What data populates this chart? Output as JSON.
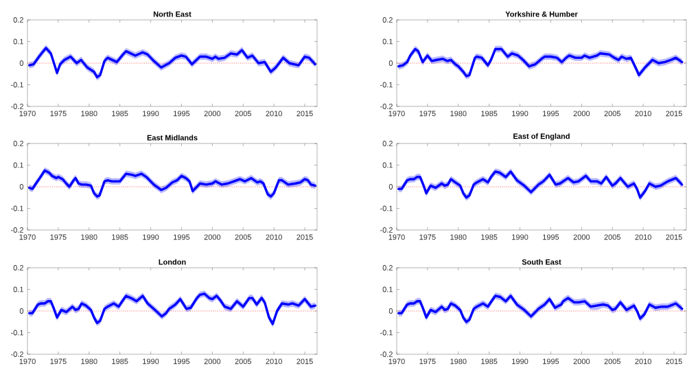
{
  "chart_data": [
    {
      "type": "line",
      "title": "North East",
      "xlim": [
        1970,
        2017
      ],
      "ylim": [
        -0.2,
        0.2
      ],
      "xticks": [
        1970,
        1975,
        1980,
        1985,
        1990,
        1995,
        2000,
        2005,
        2010,
        2015
      ],
      "yticks": [
        -0.2,
        -0.1,
        0,
        0.1,
        0.2
      ],
      "ref_lines": [
        {
          "axis": "y",
          "value": 0,
          "color": "#ff0000",
          "line_style": "dotted"
        }
      ],
      "x": [
        1970.3,
        1971,
        1972,
        1973,
        1973.8,
        1974.8,
        1975.3,
        1976,
        1977,
        1978,
        1978.7,
        1979.7,
        1980.8,
        1981.3,
        1981.8,
        1982.5,
        1983,
        1984.5,
        1985.5,
        1986,
        1987.5,
        1988.7,
        1989.5,
        1990.5,
        1991.7,
        1993,
        1994,
        1995,
        1995.7,
        1996.7,
        1998,
        1999,
        2000,
        2000.5,
        2001,
        2002,
        2003,
        2004,
        2004.8,
        2005.7,
        2006.5,
        2007.5,
        2008.5,
        2009.5,
        2010.3,
        2011.5,
        2012.5,
        2014,
        2015,
        2015.7,
        2016.7
      ],
      "series": [
        {
          "color": "#0000ff",
          "values": [
            -0.01,
            -0.005,
            0.035,
            0.07,
            0.045,
            -0.045,
            -0.005,
            0.015,
            0.03,
            0.0,
            0.015,
            -0.02,
            -0.04,
            -0.065,
            -0.055,
            0.01,
            0.025,
            0.005,
            0.04,
            0.055,
            0.035,
            0.05,
            0.04,
            0.01,
            -0.02,
            0.0,
            0.025,
            0.035,
            0.03,
            -0.005,
            0.03,
            0.03,
            0.02,
            0.03,
            0.02,
            0.025,
            0.045,
            0.04,
            0.06,
            0.025,
            0.035,
            0.0,
            0.005,
            -0.04,
            -0.02,
            0.025,
            0.0,
            -0.01,
            0.03,
            0.025,
            -0.005
          ],
          "lower": [
            -0.025,
            -0.02,
            0.02,
            0.055,
            0.03,
            -0.06,
            -0.02,
            0,
            0.015,
            -0.015,
            0,
            -0.035,
            -0.055,
            -0.08,
            -0.07,
            -0.005,
            0.01,
            -0.01,
            0.025,
            0.04,
            0.02,
            0.035,
            0.025,
            -0.005,
            -0.035,
            -0.015,
            0.01,
            0.02,
            0.015,
            -0.02,
            0.015,
            0.015,
            0.005,
            0.015,
            0.005,
            0.01,
            0.03,
            0.025,
            0.045,
            0.01,
            0.02,
            -0.015,
            -0.01,
            -0.055,
            -0.035,
            0.01,
            -0.015,
            -0.025,
            0.015,
            0.01,
            -0.02
          ],
          "upper": [
            0.005,
            0.01,
            0.05,
            0.085,
            0.06,
            -0.03,
            0.01,
            0.03,
            0.045,
            0.015,
            0.03,
            -0.005,
            -0.025,
            -0.05,
            -0.04,
            0.025,
            0.04,
            0.02,
            0.055,
            0.07,
            0.05,
            0.065,
            0.055,
            0.025,
            -0.005,
            0.015,
            0.04,
            0.05,
            0.045,
            0.01,
            0.045,
            0.045,
            0.035,
            0.045,
            0.035,
            0.04,
            0.06,
            0.055,
            0.075,
            0.04,
            0.05,
            0.015,
            0.02,
            -0.025,
            -0.005,
            0.04,
            0.015,
            0.005,
            0.045,
            0.04,
            0.01
          ]
        }
      ]
    },
    {
      "type": "line",
      "title": "Yorkshire & Humber",
      "xlim": [
        1970,
        2017
      ],
      "ylim": [
        -0.2,
        0.2
      ],
      "xticks": [
        1970,
        1975,
        1980,
        1985,
        1990,
        1995,
        2000,
        2005,
        2010,
        2015
      ],
      "yticks": [
        -0.2,
        -0.1,
        0,
        0.1,
        0.2
      ],
      "ref_lines": [
        {
          "axis": "y",
          "value": 0,
          "color": "#ff0000",
          "line_style": "dotted"
        }
      ],
      "x": [
        1970.3,
        1971,
        1971.7,
        1972.2,
        1973,
        1973.5,
        1974.2,
        1975,
        1975.7,
        1976.5,
        1977.5,
        1978.2,
        1978.8,
        1979.5,
        1980,
        1980.8,
        1981.3,
        1981.8,
        1982.7,
        1983,
        1983.8,
        1984.8,
        1985.3,
        1986,
        1987,
        1988,
        1988.7,
        1989.7,
        1990.5,
        1991.5,
        1992.5,
        1993.5,
        1994,
        1995,
        1996,
        1996.8,
        1997.5,
        1998,
        1999,
        2000,
        2000.5,
        2001.3,
        2002.5,
        2003,
        2004.5,
        2005.3,
        2006,
        2006.5,
        2007.3,
        2008,
        2009,
        2009.3,
        2010.3,
        2011.5,
        2012.5,
        2013.5,
        2014.5,
        2015.3,
        2016.3
      ],
      "series": [
        {
          "color": "#0000ff",
          "values": [
            -0.015,
            -0.01,
            0.005,
            0.035,
            0.065,
            0.055,
            0.005,
            0.035,
            0.01,
            0.015,
            0.02,
            0.01,
            0.015,
            -0.005,
            -0.015,
            -0.04,
            -0.06,
            -0.055,
            0.025,
            0.03,
            0.025,
            -0.01,
            0.015,
            0.065,
            0.065,
            0.03,
            0.045,
            0.035,
            0.015,
            -0.015,
            -0.005,
            0.02,
            0.03,
            0.03,
            0.025,
            0.005,
            0.025,
            0.035,
            0.025,
            0.025,
            0.035,
            0.025,
            0.035,
            0.045,
            0.04,
            0.025,
            0.015,
            0.03,
            0.02,
            0.025,
            -0.035,
            -0.055,
            -0.02,
            0.015,
            0.0,
            0.005,
            0.015,
            0.025,
            0.005
          ],
          "lower": [
            -0.03,
            -0.025,
            -0.01,
            0.02,
            0.05,
            0.04,
            -0.01,
            0.02,
            -0.005,
            0,
            0.005,
            -0.005,
            0,
            -0.02,
            -0.03,
            -0.055,
            -0.075,
            -0.07,
            0.01,
            0.015,
            0.01,
            -0.025,
            0,
            0.05,
            0.05,
            0.015,
            0.03,
            0.02,
            0,
            -0.03,
            -0.02,
            0.005,
            0.015,
            0.015,
            0.01,
            -0.01,
            0.01,
            0.02,
            0.01,
            0.01,
            0.02,
            0.01,
            0.02,
            0.03,
            0.025,
            0.01,
            0,
            0.015,
            0.005,
            0.01,
            -0.05,
            -0.07,
            -0.035,
            0,
            -0.015,
            -0.01,
            0,
            0.01,
            -0.01
          ],
          "upper": [
            0,
            0.005,
            0.02,
            0.05,
            0.08,
            0.07,
            0.02,
            0.05,
            0.025,
            0.03,
            0.035,
            0.025,
            0.03,
            0.01,
            0,
            -0.025,
            -0.045,
            -0.04,
            0.04,
            0.045,
            0.04,
            0.005,
            0.03,
            0.08,
            0.08,
            0.045,
            0.06,
            0.05,
            0.03,
            0,
            0.01,
            0.035,
            0.045,
            0.045,
            0.04,
            0.02,
            0.04,
            0.05,
            0.04,
            0.04,
            0.05,
            0.04,
            0.05,
            0.06,
            0.055,
            0.04,
            0.03,
            0.045,
            0.035,
            0.04,
            -0.02,
            -0.04,
            -0.005,
            0.03,
            0.015,
            0.02,
            0.03,
            0.04,
            0.02
          ]
        }
      ]
    },
    {
      "type": "line",
      "title": "East Midlands",
      "xlim": [
        1970,
        2017
      ],
      "ylim": [
        -0.2,
        0.2
      ],
      "xticks": [
        1970,
        1975,
        1980,
        1985,
        1990,
        1995,
        2000,
        2005,
        2010,
        2015
      ],
      "yticks": [
        -0.2,
        -0.1,
        0,
        0.1,
        0.2
      ],
      "ref_lines": [
        {
          "axis": "y",
          "value": 0,
          "color": "#ff0000",
          "line_style": "dotted"
        }
      ],
      "x": [
        1970.3,
        1970.8,
        1971.5,
        1972,
        1972.8,
        1973.5,
        1974,
        1974.7,
        1975,
        1975.7,
        1976.3,
        1976.8,
        1977.5,
        1977.8,
        1978.3,
        1978.8,
        1979.5,
        1980.3,
        1980.8,
        1981.3,
        1981.7,
        1982.5,
        1983,
        1983.7,
        1984.5,
        1985,
        1986,
        1987,
        1987.5,
        1988.5,
        1989.3,
        1990.5,
        1991.7,
        1992.5,
        1993.5,
        1994.3,
        1995,
        1995.7,
        1996.3,
        1996.8,
        1997.5,
        1998,
        1999,
        2000,
        2000.5,
        2001.5,
        2002.5,
        2003.5,
        2004.5,
        2005.3,
        2006.3,
        2007.3,
        2007.8,
        2008.3,
        2009,
        2009.5,
        2010,
        2010.8,
        2011.3,
        2012.3,
        2013.5,
        2014.3,
        2015,
        2015.5,
        2016,
        2016.7
      ],
      "series": [
        {
          "color": "#0000ff",
          "values": [
            -0.005,
            -0.01,
            0.02,
            0.04,
            0.075,
            0.065,
            0.05,
            0.04,
            0.045,
            0.035,
            0.015,
            0.0,
            0.03,
            0.04,
            0.015,
            0.01,
            0.01,
            0.005,
            -0.03,
            -0.045,
            -0.04,
            0.025,
            0.03,
            0.025,
            0.025,
            0.025,
            0.06,
            0.055,
            0.05,
            0.06,
            0.045,
            0.01,
            -0.015,
            -0.005,
            0.02,
            0.03,
            0.05,
            0.04,
            0.025,
            -0.02,
            0.0,
            0.015,
            0.01,
            0.015,
            0.025,
            0.01,
            0.015,
            0.025,
            0.035,
            0.025,
            0.04,
            0.02,
            0.025,
            0.015,
            -0.035,
            -0.045,
            -0.03,
            0.03,
            0.03,
            0.01,
            0.015,
            0.02,
            0.035,
            0.03,
            0.01,
            0.005
          ],
          "lower": [
            -0.02,
            -0.025,
            0.005,
            0.025,
            0.06,
            0.05,
            0.035,
            0.025,
            0.03,
            0.02,
            0,
            -0.015,
            0.015,
            0.025,
            0,
            -0.005,
            -0.005,
            -0.01,
            -0.045,
            -0.06,
            -0.055,
            0.01,
            0.015,
            0.01,
            0.01,
            0.01,
            0.045,
            0.04,
            0.035,
            0.045,
            0.03,
            -0.005,
            -0.03,
            -0.02,
            0.005,
            0.015,
            0.035,
            0.025,
            0.01,
            -0.035,
            -0.015,
            0,
            -0.005,
            0,
            0.01,
            -0.005,
            0,
            0.01,
            0.02,
            0.01,
            0.025,
            0.005,
            0.01,
            0,
            -0.05,
            -0.06,
            -0.045,
            0.015,
            0.015,
            -0.005,
            0,
            0.005,
            0.02,
            0.015,
            -0.005,
            -0.01
          ],
          "upper": [
            0.01,
            0.005,
            0.035,
            0.055,
            0.09,
            0.08,
            0.065,
            0.055,
            0.06,
            0.05,
            0.03,
            0.015,
            0.045,
            0.055,
            0.03,
            0.025,
            0.025,
            0.02,
            -0.015,
            -0.03,
            -0.025,
            0.04,
            0.045,
            0.04,
            0.04,
            0.04,
            0.075,
            0.07,
            0.065,
            0.075,
            0.06,
            0.025,
            0,
            0.01,
            0.035,
            0.045,
            0.065,
            0.055,
            0.04,
            -0.005,
            0.015,
            0.03,
            0.025,
            0.03,
            0.04,
            0.025,
            0.03,
            0.04,
            0.05,
            0.04,
            0.055,
            0.035,
            0.04,
            0.03,
            -0.02,
            -0.03,
            -0.015,
            0.045,
            0.045,
            0.025,
            0.03,
            0.035,
            0.05,
            0.045,
            0.025,
            0.02
          ]
        }
      ]
    },
    {
      "type": "line",
      "title": "East of England",
      "xlim": [
        1970,
        2017
      ],
      "ylim": [
        -0.2,
        0.2
      ],
      "xticks": [
        1970,
        1975,
        1980,
        1985,
        1990,
        1995,
        2000,
        2005,
        2010,
        2015
      ],
      "yticks": [
        -0.2,
        -0.1,
        0,
        0.1,
        0.2
      ],
      "ref_lines": [
        {
          "axis": "y",
          "value": 0,
          "color": "#ff0000",
          "line_style": "dotted"
        }
      ],
      "x": [
        1970.3,
        1970.8,
        1971.7,
        1972.2,
        1972.8,
        1973.3,
        1973.8,
        1974.3,
        1974.8,
        1975.5,
        1976.3,
        1977.3,
        1977.8,
        1978.3,
        1978.8,
        1979.5,
        1980.3,
        1980.8,
        1981.3,
        1981.8,
        1982.5,
        1983,
        1984,
        1984.8,
        1985.3,
        1986,
        1986.7,
        1987.7,
        1988.5,
        1989.5,
        1990.7,
        1991.8,
        1992.5,
        1993,
        1993.8,
        1994.8,
        1995.8,
        1996.5,
        1997.8,
        1998.7,
        1999.5,
        2000.7,
        2001.5,
        2002.5,
        2003.2,
        2004,
        2005,
        2005.5,
        2006.3,
        2007.5,
        2008.5,
        2009,
        2009.5,
        2010.3,
        2011,
        2012,
        2012.8,
        2014,
        2015.3,
        2016.3
      ],
      "series": [
        {
          "color": "#0000ff",
          "values": [
            -0.01,
            -0.01,
            0.03,
            0.035,
            0.035,
            0.045,
            0.045,
            0.01,
            -0.03,
            0.005,
            -0.005,
            0.015,
            0.005,
            0.01,
            0.035,
            0.02,
            0.005,
            -0.03,
            -0.05,
            -0.04,
            0.01,
            0.02,
            0.035,
            0.02,
            0.045,
            0.07,
            0.065,
            0.045,
            0.07,
            0.03,
            0.005,
            -0.025,
            -0.005,
            0.01,
            0.025,
            0.055,
            0.01,
            0.015,
            0.04,
            0.02,
            0.025,
            0.05,
            0.025,
            0.025,
            0.015,
            0.045,
            0.005,
            0.015,
            0.04,
            0.0,
            0.015,
            -0.01,
            -0.05,
            -0.02,
            0.015,
            0.0,
            0.005,
            0.025,
            0.04,
            0.01
          ],
          "lower": [
            -0.025,
            -0.025,
            0.015,
            0.02,
            0.02,
            0.03,
            0.03,
            -0.005,
            -0.045,
            -0.01,
            -0.02,
            0,
            -0.01,
            -0.005,
            0.02,
            0.005,
            -0.01,
            -0.045,
            -0.065,
            -0.055,
            -0.005,
            0.005,
            0.02,
            0.005,
            0.03,
            0.055,
            0.05,
            0.03,
            0.055,
            0.015,
            -0.01,
            -0.04,
            -0.02,
            -0.005,
            0.01,
            0.04,
            -0.005,
            0,
            0.025,
            0.005,
            0.01,
            0.035,
            0.01,
            0.01,
            0,
            0.03,
            -0.01,
            0,
            0.025,
            -0.015,
            0,
            -0.025,
            -0.065,
            -0.035,
            0,
            -0.015,
            -0.01,
            0.01,
            0.025,
            -0.005
          ],
          "upper": [
            0.005,
            0.005,
            0.045,
            0.05,
            0.05,
            0.06,
            0.06,
            0.025,
            -0.015,
            0.02,
            0.01,
            0.03,
            0.02,
            0.025,
            0.05,
            0.035,
            0.02,
            -0.015,
            -0.035,
            -0.025,
            0.025,
            0.035,
            0.05,
            0.035,
            0.06,
            0.085,
            0.08,
            0.06,
            0.085,
            0.045,
            0.02,
            -0.01,
            0.01,
            0.025,
            0.04,
            0.07,
            0.025,
            0.03,
            0.055,
            0.035,
            0.04,
            0.065,
            0.04,
            0.04,
            0.03,
            0.06,
            0.02,
            0.03,
            0.055,
            0.015,
            0.03,
            0.005,
            -0.035,
            -0.005,
            0.03,
            0.015,
            0.02,
            0.04,
            0.055,
            0.025
          ]
        }
      ]
    },
    {
      "type": "line",
      "title": "London",
      "xlim": [
        1970,
        2017
      ],
      "ylim": [
        -0.2,
        0.2
      ],
      "xticks": [
        1970,
        1975,
        1980,
        1985,
        1990,
        1995,
        2000,
        2005,
        2010,
        2015
      ],
      "yticks": [
        -0.2,
        -0.1,
        0,
        0.1,
        0.2
      ],
      "ref_lines": [
        {
          "axis": "y",
          "value": 0,
          "color": "#ff0000",
          "line_style": "dotted"
        }
      ],
      "x": [
        1970.3,
        1970.8,
        1971.7,
        1972.2,
        1972.8,
        1973.3,
        1973.8,
        1974.3,
        1974.8,
        1975.5,
        1976.3,
        1977.3,
        1977.8,
        1978.3,
        1978.8,
        1979.5,
        1980.3,
        1980.8,
        1981.3,
        1981.8,
        1982.5,
        1983,
        1984,
        1984.8,
        1985.5,
        1986,
        1986.8,
        1987.7,
        1988.7,
        1989.5,
        1990.7,
        1991.8,
        1992.5,
        1993,
        1994,
        1994.8,
        1995.8,
        1996.5,
        1997.5,
        1998,
        1998.7,
        1999.5,
        2000,
        2000.7,
        2001.3,
        2002,
        2003,
        2004,
        2005,
        2006,
        2006.5,
        2007.2,
        2008,
        2008.5,
        2009.2,
        2009.8,
        2010.5,
        2011.3,
        2012.3,
        2013,
        2014,
        2015,
        2016,
        2016.7
      ],
      "series": [
        {
          "color": "#0000ff",
          "values": [
            -0.01,
            -0.01,
            0.03,
            0.035,
            0.035,
            0.045,
            0.045,
            0.01,
            -0.03,
            0.005,
            -0.005,
            0.02,
            0.005,
            0.01,
            0.035,
            0.025,
            0.005,
            -0.03,
            -0.055,
            -0.045,
            0.01,
            0.02,
            0.035,
            0.02,
            0.05,
            0.07,
            0.06,
            0.045,
            0.07,
            0.035,
            0.005,
            -0.025,
            -0.01,
            0.01,
            0.03,
            0.055,
            0.01,
            0.015,
            0.06,
            0.075,
            0.08,
            0.06,
            0.055,
            0.07,
            0.05,
            0.02,
            0.01,
            0.045,
            0.02,
            0.06,
            0.06,
            0.03,
            0.06,
            0.04,
            -0.03,
            -0.06,
            0.0,
            0.035,
            0.03,
            0.035,
            0.025,
            0.055,
            0.02,
            0.025
          ],
          "lower": [
            -0.025,
            -0.025,
            0.015,
            0.02,
            0.02,
            0.03,
            0.03,
            -0.005,
            -0.045,
            -0.01,
            -0.02,
            0.005,
            -0.01,
            -0.005,
            0.02,
            0.01,
            -0.01,
            -0.045,
            -0.07,
            -0.06,
            -0.005,
            0.005,
            0.02,
            0.005,
            0.035,
            0.055,
            0.045,
            0.03,
            0.055,
            0.02,
            -0.01,
            -0.04,
            -0.025,
            -0.005,
            0.015,
            0.04,
            -0.005,
            0,
            0.045,
            0.06,
            0.065,
            0.045,
            0.04,
            0.055,
            0.035,
            0.005,
            -0.005,
            0.03,
            0.005,
            0.045,
            0.045,
            0.015,
            0.045,
            0.025,
            -0.045,
            -0.075,
            -0.015,
            0.02,
            0.015,
            0.02,
            0.01,
            0.04,
            0.005,
            0.01
          ],
          "upper": [
            0.005,
            0.005,
            0.045,
            0.05,
            0.05,
            0.06,
            0.06,
            0.025,
            -0.015,
            0.02,
            0.01,
            0.035,
            0.02,
            0.025,
            0.05,
            0.04,
            0.02,
            -0.015,
            -0.04,
            -0.03,
            0.025,
            0.035,
            0.05,
            0.035,
            0.065,
            0.085,
            0.075,
            0.06,
            0.085,
            0.05,
            0.02,
            -0.01,
            0.005,
            0.025,
            0.045,
            0.07,
            0.025,
            0.03,
            0.075,
            0.09,
            0.095,
            0.075,
            0.07,
            0.085,
            0.065,
            0.035,
            0.025,
            0.06,
            0.035,
            0.075,
            0.075,
            0.045,
            0.075,
            0.055,
            -0.015,
            -0.045,
            0.015,
            0.05,
            0.045,
            0.05,
            0.04,
            0.07,
            0.035,
            0.04
          ]
        }
      ]
    },
    {
      "type": "line",
      "title": "South East",
      "xlim": [
        1970,
        2017
      ],
      "ylim": [
        -0.2,
        0.2
      ],
      "xticks": [
        1970,
        1975,
        1980,
        1985,
        1990,
        1995,
        2000,
        2005,
        2010,
        2015
      ],
      "yticks": [
        -0.2,
        -0.1,
        0,
        0.1,
        0.2
      ],
      "ref_lines": [
        {
          "axis": "y",
          "value": 0,
          "color": "#ff0000",
          "line_style": "dotted"
        }
      ],
      "x": [
        1970.3,
        1970.8,
        1971.7,
        1972.2,
        1972.8,
        1973.3,
        1973.8,
        1974.3,
        1974.8,
        1975.5,
        1976.3,
        1977.3,
        1977.8,
        1978.3,
        1978.8,
        1979.5,
        1980.3,
        1980.8,
        1981.3,
        1981.8,
        1982.5,
        1983,
        1984,
        1984.8,
        1985.5,
        1986,
        1986.8,
        1987.7,
        1988.5,
        1989.5,
        1990.7,
        1991.8,
        1992.5,
        1993,
        1994,
        1994.8,
        1995.7,
        1996.7,
        1997,
        1997.8,
        1998.8,
        1999.5,
        2000.5,
        2001.5,
        2002.5,
        2003.5,
        2004.3,
        2005,
        2005.5,
        2006.3,
        2007.3,
        2008.5,
        2009,
        2009.5,
        2010.2,
        2011,
        2012,
        2013,
        2014,
        2015.3,
        2016.3
      ],
      "series": [
        {
          "color": "#0000ff",
          "values": [
            -0.01,
            -0.01,
            0.03,
            0.035,
            0.035,
            0.045,
            0.045,
            0.01,
            -0.03,
            0.005,
            -0.005,
            0.02,
            0.005,
            0.01,
            0.035,
            0.025,
            0.005,
            -0.03,
            -0.05,
            -0.04,
            0.01,
            0.02,
            0.035,
            0.02,
            0.05,
            0.07,
            0.065,
            0.045,
            0.07,
            0.03,
            0.005,
            -0.025,
            -0.005,
            0.01,
            0.03,
            0.055,
            0.015,
            0.03,
            0.045,
            0.06,
            0.04,
            0.04,
            0.045,
            0.02,
            0.025,
            0.03,
            0.025,
            0.005,
            0.01,
            0.04,
            0.005,
            0.025,
            0.0,
            -0.035,
            -0.015,
            0.03,
            0.015,
            0.02,
            0.02,
            0.035,
            0.01
          ],
          "lower": [
            -0.025,
            -0.025,
            0.015,
            0.02,
            0.02,
            0.03,
            0.03,
            -0.005,
            -0.045,
            -0.01,
            -0.02,
            0.005,
            -0.01,
            -0.005,
            0.02,
            0.01,
            -0.01,
            -0.045,
            -0.065,
            -0.055,
            -0.005,
            0.005,
            0.02,
            0.005,
            0.035,
            0.055,
            0.05,
            0.03,
            0.055,
            0.015,
            -0.01,
            -0.04,
            -0.02,
            -0.005,
            0.015,
            0.04,
            0,
            0.015,
            0.03,
            0.045,
            0.025,
            0.025,
            0.03,
            0.005,
            0.005,
            0.015,
            0.01,
            -0.01,
            -0.005,
            0.025,
            -0.01,
            0.01,
            -0.015,
            -0.05,
            -0.03,
            0.015,
            0,
            0.005,
            0.005,
            0.02,
            -0.005
          ],
          "upper": [
            0.005,
            0.005,
            0.045,
            0.05,
            0.05,
            0.06,
            0.06,
            0.025,
            -0.015,
            0.02,
            0.01,
            0.035,
            0.02,
            0.025,
            0.05,
            0.04,
            0.02,
            -0.015,
            -0.035,
            -0.025,
            0.025,
            0.035,
            0.05,
            0.035,
            0.065,
            0.085,
            0.08,
            0.06,
            0.085,
            0.045,
            0.02,
            -0.01,
            0.01,
            0.025,
            0.045,
            0.07,
            0.03,
            0.045,
            0.06,
            0.075,
            0.055,
            0.055,
            0.06,
            0.035,
            0.04,
            0.045,
            0.04,
            0.02,
            0.025,
            0.055,
            0.02,
            0.04,
            0.015,
            -0.02,
            0,
            0.045,
            0.03,
            0.035,
            0.035,
            0.05,
            0.025
          ]
        }
      ]
    }
  ]
}
